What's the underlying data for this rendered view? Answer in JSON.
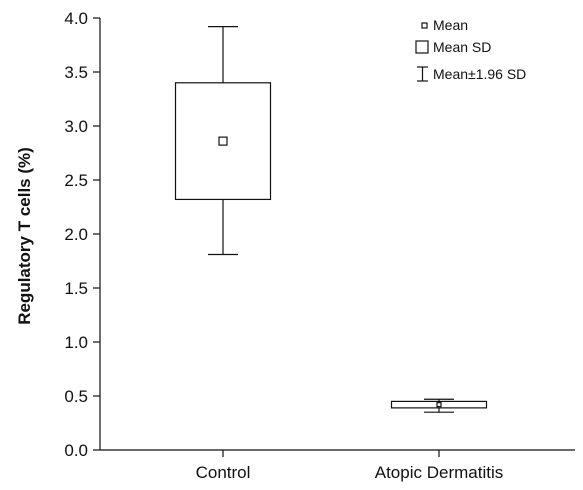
{
  "chart_data": {
    "type": "box",
    "ylabel": "Regulatory T cells (%)",
    "xlabel": "",
    "ylim": [
      0.0,
      4.0
    ],
    "yticks": [
      "0.0",
      "0.5",
      "1.0",
      "1.5",
      "2.0",
      "2.5",
      "3.0",
      "3.5",
      "4.0"
    ],
    "categories": [
      "Control",
      "Atopic Dermatitis"
    ],
    "boxes": [
      {
        "category": "Control",
        "mean": 2.86,
        "box_low": 2.32,
        "box_high": 3.4,
        "whisker_low": 1.81,
        "whisker_high": 3.92
      },
      {
        "category": "Atopic Dermatitis",
        "mean": 0.42,
        "box_low": 0.39,
        "box_high": 0.45,
        "whisker_low": 0.35,
        "whisker_high": 0.47
      }
    ],
    "legend": {
      "position": "top-right",
      "items": [
        "Mean",
        "Mean SD",
        "Mean±1.96 SD"
      ]
    },
    "grid": false
  }
}
